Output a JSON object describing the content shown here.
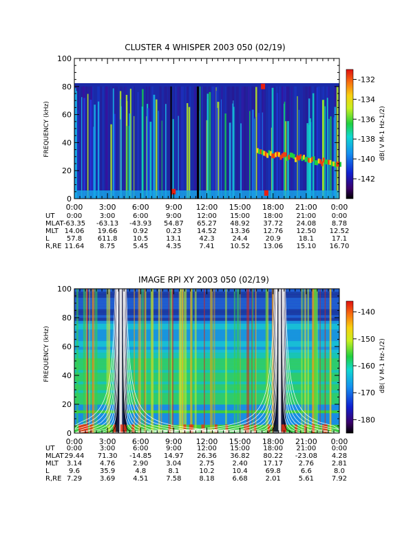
{
  "chart_data": [
    {
      "type": "heatmap",
      "title": "CLUSTER 4 WHISPER 2003 050 (02/19)",
      "ylabel": "FREQUENCY (kHz)",
      "ylim": [
        0,
        100
      ],
      "y_ticks": [
        "0",
        "20",
        "40",
        "60",
        "80",
        "100"
      ],
      "x_ticks": [
        "0:00",
        "3:00",
        "6:00",
        "9:00",
        "12:00",
        "15:00",
        "18:00",
        "21:00",
        "0:00"
      ],
      "xlim_hours": [
        0,
        24
      ],
      "data_max_frequency_khz": 80,
      "colorbar": {
        "label": "dB( V M-1 Hz-1/2)",
        "ticks": [
          "-132",
          "-134",
          "-136",
          "-138",
          "-140",
          "-142"
        ],
        "range": [
          -144,
          -131
        ]
      },
      "ephemeris": [
        {
          "label": "UT",
          "values": [
            "0:00",
            "3:00",
            "6:00",
            "9:00",
            "12:00",
            "15:00",
            "18:00",
            "21:00",
            "0:00"
          ]
        },
        {
          "label": "MLAT",
          "values": [
            "-63.35",
            "-63.13",
            "-43.93",
            "54.87",
            "65.27",
            "48.92",
            "37.72",
            "24.08",
            "8.78"
          ]
        },
        {
          "label": "MLT",
          "values": [
            "14.06",
            "19.66",
            "0.92",
            "0.23",
            "14.52",
            "13.36",
            "12.76",
            "12.50",
            "12.52"
          ]
        },
        {
          "label": "L",
          "values": [
            "57.8",
            "611.8",
            "10.5",
            "13.1",
            "42.3",
            "24.4",
            "20.9",
            "18.1",
            "17.1"
          ]
        },
        {
          "label": "R,RE",
          "values": [
            "11.64",
            "8.75",
            "5.45",
            "4.35",
            "7.41",
            "10.52",
            "13.06",
            "15.10",
            "16.70"
          ]
        }
      ]
    },
    {
      "type": "heatmap",
      "title": "IMAGE RPI XY 2003 050 (02/19)",
      "ylabel": "FREQUENCY (kHz)",
      "ylim": [
        0,
        100
      ],
      "y_ticks": [
        "0",
        "20",
        "40",
        "60",
        "80",
        "100"
      ],
      "x_ticks": [
        "0:00",
        "3:00",
        "6:00",
        "9:00",
        "12:00",
        "15:00",
        "18:00",
        "21:00",
        "0:00"
      ],
      "xlim_hours": [
        0,
        24
      ],
      "perigee_hours": [
        4.2,
        18.6
      ],
      "colorbar": {
        "label": "dB( V M-1 Hz-1/2)",
        "ticks": [
          "-140",
          "-150",
          "-160",
          "-170",
          "-180"
        ],
        "range": [
          -185,
          -136
        ]
      },
      "ephemeris": [
        {
          "label": "UT",
          "values": [
            "0:00",
            "3:00",
            "6:00",
            "9:00",
            "12:00",
            "15:00",
            "18:00",
            "21:00",
            "0:00"
          ]
        },
        {
          "label": "MLAT",
          "values": [
            "29.44",
            "71.30",
            "-14.85",
            "14.97",
            "26.36",
            "36.82",
            "80.22",
            "-23.08",
            "4.28"
          ]
        },
        {
          "label": "MLT",
          "values": [
            "3.14",
            "4.76",
            "2.90",
            "3.04",
            "2.75",
            "2.40",
            "17.17",
            "2.76",
            "2.81"
          ]
        },
        {
          "label": "L",
          "values": [
            "9.6",
            "35.9",
            "4.8",
            "8.1",
            "10.2",
            "10.4",
            "69.8",
            "6.6",
            "8.0"
          ]
        },
        {
          "label": "R,RE",
          "values": [
            "7.29",
            "3.69",
            "4.51",
            "7.58",
            "8.18",
            "6.68",
            "2.01",
            "5.61",
            "7.92"
          ]
        }
      ]
    }
  ]
}
